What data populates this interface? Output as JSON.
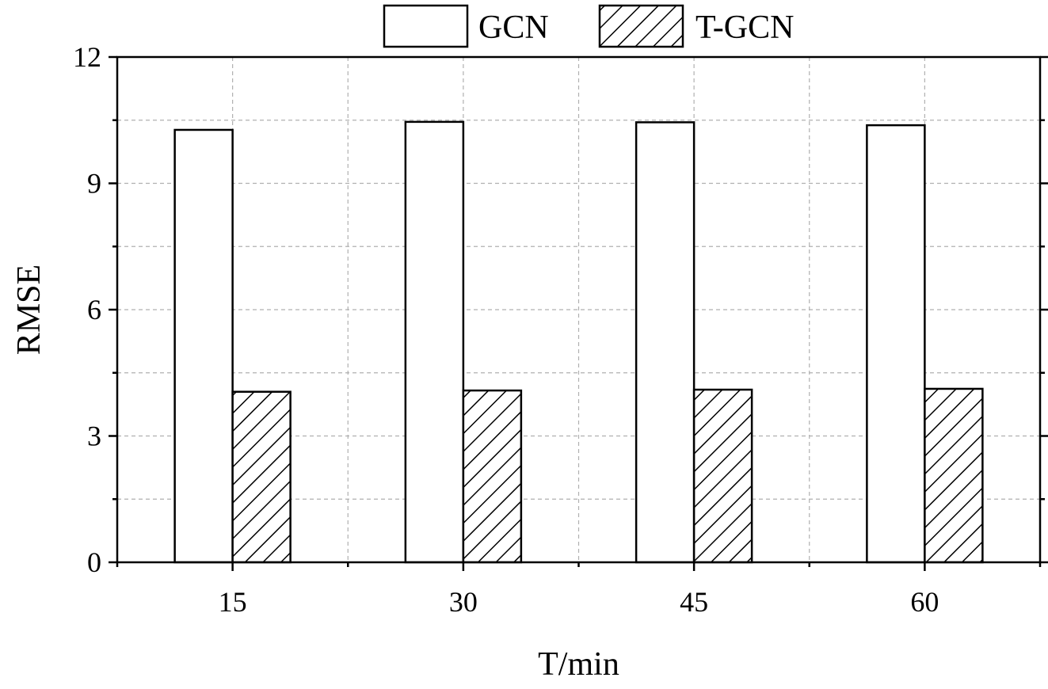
{
  "chart_data": {
    "type": "bar",
    "categories": [
      "15",
      "30",
      "45",
      "60"
    ],
    "series": [
      {
        "name": "GCN",
        "values": [
          10.27,
          10.46,
          10.45,
          10.38
        ],
        "fill": "none"
      },
      {
        "name": "T-GCN",
        "values": [
          4.05,
          4.08,
          4.1,
          4.12
        ],
        "fill": "diagonal-hatch"
      }
    ],
    "xlabel": "T/min",
    "ylabel": "RMSE",
    "ylim": [
      0,
      12
    ],
    "yticks": [
      "0",
      "3",
      "6",
      "9",
      "12"
    ],
    "grid": true,
    "legend_position": "top-center",
    "colors": {
      "stroke": "#000000",
      "grid": "#b0b0b0",
      "background": "#ffffff"
    }
  }
}
